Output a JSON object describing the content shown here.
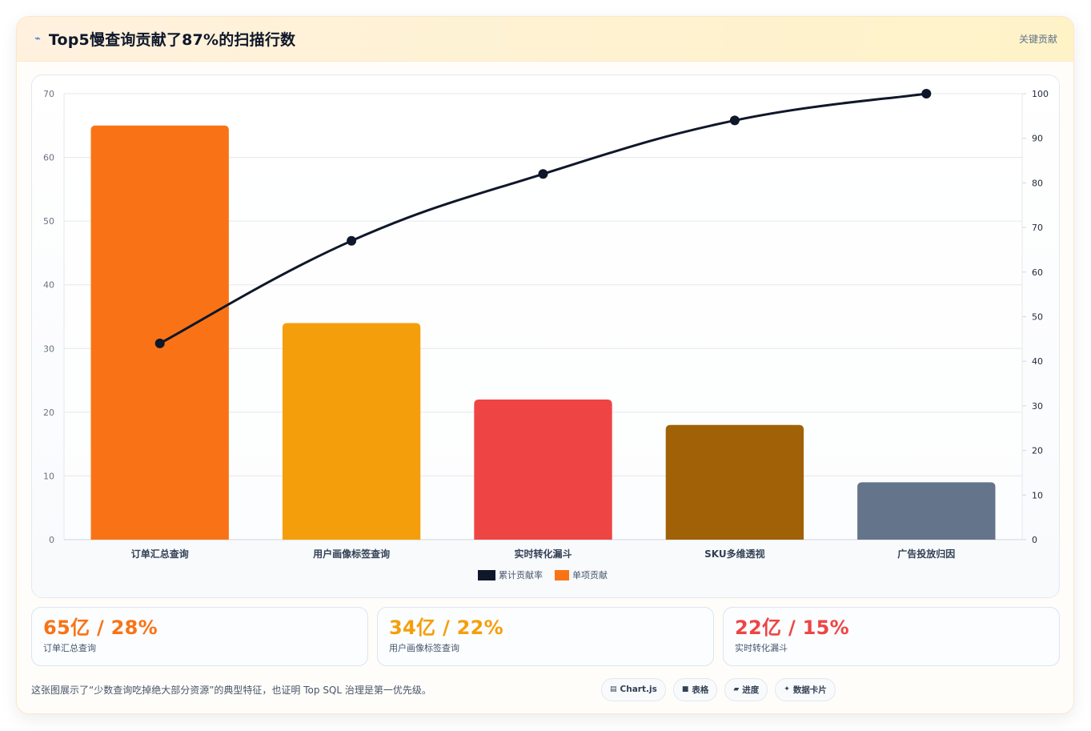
{
  "header": {
    "icon": "lightning-icon",
    "title": "Top5慢查询贡献了87%的扫描行数",
    "tag": "关键贡献"
  },
  "chart_data": {
    "type": "bar",
    "categories": [
      "订单汇总查询",
      "用户画像标签查询",
      "实时转化漏斗",
      "SKU多维透视",
      "广告投放归因"
    ],
    "series": [
      {
        "name": "单项贡献",
        "kind": "bar",
        "axis": "left",
        "values": [
          65,
          34,
          22,
          18,
          9
        ],
        "colors": [
          "#f97316",
          "#f59e0b",
          "#ef4444",
          "#a16207",
          "#64748b"
        ]
      },
      {
        "name": "累计贡献率",
        "kind": "line",
        "axis": "right",
        "values": [
          44,
          67,
          82,
          94,
          100
        ],
        "color": "#0f172a"
      }
    ],
    "y_left": {
      "min": 0,
      "max": 70,
      "ticks": [
        0,
        10,
        20,
        30,
        40,
        50,
        60,
        70
      ]
    },
    "y_right": {
      "min": 0,
      "max": 100,
      "ticks": [
        0,
        10,
        20,
        30,
        40,
        50,
        60,
        70,
        80,
        90,
        100
      ]
    },
    "grid": true,
    "legend_position": "bottom"
  },
  "stats": [
    {
      "value": "65亿 / 28%",
      "label": "订单汇总查询",
      "color": "#f97316"
    },
    {
      "value": "34亿 / 22%",
      "label": "用户画像标签查询",
      "color": "#f59e0b"
    },
    {
      "value": "22亿 / 15%",
      "label": "实时转化漏斗",
      "color": "#ef4444"
    }
  ],
  "footer": {
    "note": "这张图展示了“少数查询吃掉绝大部分资源”的典型特征，也证明 Top SQL 治理是第一优先级。",
    "pills": [
      {
        "icon": "chart-icon",
        "glyph": "▤",
        "label": "Chart.js"
      },
      {
        "icon": "table-icon",
        "glyph": "■",
        "label": "表格"
      },
      {
        "icon": "progress-icon",
        "glyph": "▰",
        "label": "进度"
      },
      {
        "icon": "card-icon",
        "glyph": "✦",
        "label": "数据卡片"
      }
    ]
  }
}
